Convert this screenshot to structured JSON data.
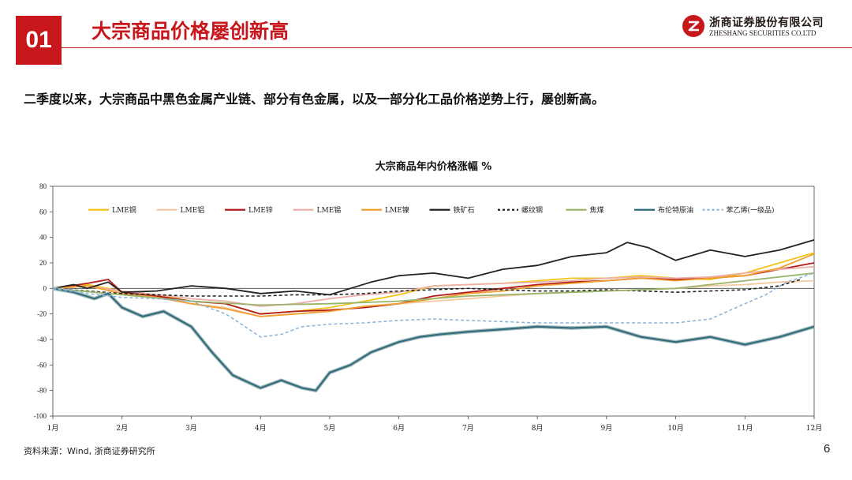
{
  "header": {
    "number": "01",
    "title": "大宗商品价格屡创新高",
    "brand_color": "#c8161d"
  },
  "logo": {
    "cn": "浙商证券股份有限公司",
    "en": "ZHESHANG SECURITIES CO.LTD"
  },
  "subtitle": "二季度以来，大宗商品中黑色金属产业链、部分有色金属，以及一部分化工品价格逆势上行，屡创新高。",
  "footer": {
    "source": "资料来源：Wind, 浙商证券研究所",
    "page": "6"
  },
  "chart_data": {
    "type": "line",
    "title": "大宗商品年内价格涨幅 %",
    "x_categories": [
      "1月",
      "2月",
      "3月",
      "4月",
      "5月",
      "6月",
      "7月",
      "8月",
      "9月",
      "10月",
      "11月",
      "12月"
    ],
    "ylim": [
      -100,
      80
    ],
    "yticks": [
      80,
      60,
      40,
      20,
      0,
      -20,
      -40,
      -60,
      -80,
      -100
    ],
    "grid": false,
    "legend_position": "top",
    "series": [
      {
        "name": "LME铜",
        "color": "#f2c418",
        "dash": "solid",
        "values": [
          [
            1,
            0
          ],
          [
            1.5,
            3
          ],
          [
            2,
            -2
          ],
          [
            2.5,
            -5
          ],
          [
            3,
            -10
          ],
          [
            3.5,
            -12
          ],
          [
            4,
            -20
          ],
          [
            4.5,
            -18
          ],
          [
            5,
            -15
          ],
          [
            5.5,
            -10
          ],
          [
            6,
            -5
          ],
          [
            6.5,
            2
          ],
          [
            7,
            3
          ],
          [
            7.5,
            4
          ],
          [
            8,
            6
          ],
          [
            8.5,
            8
          ],
          [
            9,
            8
          ],
          [
            9.5,
            10
          ],
          [
            10,
            8
          ],
          [
            10.5,
            7
          ],
          [
            11,
            12
          ],
          [
            11.5,
            20
          ],
          [
            12,
            28
          ]
        ]
      },
      {
        "name": "LME铝",
        "color": "#f5c9a0",
        "dash": "solid",
        "values": [
          [
            1,
            0
          ],
          [
            1.5,
            2
          ],
          [
            2,
            -3
          ],
          [
            2.5,
            -6
          ],
          [
            3,
            -12
          ],
          [
            3.5,
            -15
          ],
          [
            4,
            -22
          ],
          [
            4.5,
            -20
          ],
          [
            5,
            -18
          ],
          [
            5.5,
            -14
          ],
          [
            6,
            -12
          ],
          [
            6.5,
            -10
          ],
          [
            7,
            -8
          ],
          [
            7.5,
            -6
          ],
          [
            8,
            -4
          ],
          [
            8.5,
            -3
          ],
          [
            9,
            -2
          ],
          [
            9.5,
            -1
          ],
          [
            10,
            0
          ],
          [
            10.5,
            2
          ],
          [
            11,
            3
          ],
          [
            11.5,
            5
          ],
          [
            12,
            6
          ]
        ]
      },
      {
        "name": "LME锌",
        "color": "#b31b1b",
        "dash": "solid",
        "values": [
          [
            1,
            0
          ],
          [
            1.5,
            4
          ],
          [
            1.8,
            7
          ],
          [
            2,
            -3
          ],
          [
            2.5,
            -6
          ],
          [
            3,
            -10
          ],
          [
            3.5,
            -12
          ],
          [
            4,
            -20
          ],
          [
            4.5,
            -18
          ],
          [
            5,
            -17
          ],
          [
            5.5,
            -15
          ],
          [
            6,
            -12
          ],
          [
            6.5,
            -6
          ],
          [
            7,
            -3
          ],
          [
            7.5,
            0
          ],
          [
            8,
            3
          ],
          [
            8.5,
            5
          ],
          [
            9,
            6
          ],
          [
            9.5,
            8
          ],
          [
            10,
            7
          ],
          [
            10.5,
            8
          ],
          [
            11,
            10
          ],
          [
            11.5,
            15
          ],
          [
            12,
            20
          ]
        ]
      },
      {
        "name": "LME锡",
        "color": "#ecb0a8",
        "dash": "solid",
        "values": [
          [
            1,
            0
          ],
          [
            1.5,
            2
          ],
          [
            2,
            -2
          ],
          [
            2.5,
            -5
          ],
          [
            3,
            -8
          ],
          [
            3.5,
            -10
          ],
          [
            4,
            -14
          ],
          [
            4.5,
            -12
          ],
          [
            5,
            -8
          ],
          [
            5.5,
            -5
          ],
          [
            6,
            -3
          ],
          [
            6.5,
            2
          ],
          [
            7,
            3
          ],
          [
            7.5,
            4
          ],
          [
            8,
            5
          ],
          [
            8.5,
            6
          ],
          [
            9,
            8
          ],
          [
            9.5,
            9
          ],
          [
            10,
            8
          ],
          [
            10.5,
            9
          ],
          [
            11,
            12
          ],
          [
            11.5,
            15
          ],
          [
            12,
            17
          ]
        ]
      },
      {
        "name": "LME镍",
        "color": "#f0a030",
        "dash": "solid",
        "values": [
          [
            1,
            0
          ],
          [
            1.5,
            2
          ],
          [
            2,
            -4
          ],
          [
            2.5,
            -7
          ],
          [
            3,
            -12
          ],
          [
            3.5,
            -16
          ],
          [
            4,
            -22
          ],
          [
            4.5,
            -20
          ],
          [
            5,
            -18
          ],
          [
            5.5,
            -14
          ],
          [
            6,
            -12
          ],
          [
            6.5,
            -8
          ],
          [
            7,
            -4
          ],
          [
            7.5,
            -2
          ],
          [
            8,
            2
          ],
          [
            8.5,
            4
          ],
          [
            9,
            6
          ],
          [
            9.5,
            8
          ],
          [
            10,
            6
          ],
          [
            10.5,
            8
          ],
          [
            11,
            10
          ],
          [
            11.5,
            16
          ],
          [
            12,
            27
          ]
        ]
      },
      {
        "name": "铁矿石",
        "color": "#222222",
        "dash": "solid",
        "values": [
          [
            1,
            0
          ],
          [
            1.3,
            3
          ],
          [
            1.5,
            0
          ],
          [
            1.8,
            5
          ],
          [
            2,
            -3
          ],
          [
            2.5,
            -2
          ],
          [
            3,
            2
          ],
          [
            3.5,
            0
          ],
          [
            4,
            -4
          ],
          [
            4.5,
            -2
          ],
          [
            5,
            -5
          ],
          [
            5.3,
            0
          ],
          [
            5.6,
            5
          ],
          [
            6,
            10
          ],
          [
            6.5,
            12
          ],
          [
            7,
            8
          ],
          [
            7.5,
            15
          ],
          [
            8,
            18
          ],
          [
            8.5,
            25
          ],
          [
            9,
            28
          ],
          [
            9.3,
            36
          ],
          [
            9.6,
            32
          ],
          [
            10,
            22
          ],
          [
            10.5,
            30
          ],
          [
            11,
            25
          ],
          [
            11.5,
            30
          ],
          [
            12,
            38
          ]
        ]
      },
      {
        "name": "螺纹钢",
        "color": "#222222",
        "dash": "dashed",
        "values": [
          [
            1,
            0
          ],
          [
            1.5,
            -2
          ],
          [
            2,
            -4
          ],
          [
            2.5,
            -5
          ],
          [
            3,
            -6
          ],
          [
            3.5,
            -6
          ],
          [
            4,
            -6
          ],
          [
            4.5,
            -5
          ],
          [
            5,
            -5
          ],
          [
            5.5,
            -4
          ],
          [
            6,
            -2
          ],
          [
            6.5,
            -1
          ],
          [
            7,
            0
          ],
          [
            7.5,
            -1
          ],
          [
            8,
            -2
          ],
          [
            8.5,
            -2
          ],
          [
            9,
            -1
          ],
          [
            9.5,
            -2
          ],
          [
            10,
            -3
          ],
          [
            10.5,
            -2
          ],
          [
            11,
            -1
          ],
          [
            11.5,
            2
          ],
          [
            11.8,
            7
          ]
        ]
      },
      {
        "name": "焦煤",
        "color": "#9ab56b",
        "dash": "solid",
        "values": [
          [
            1,
            0
          ],
          [
            2,
            -5
          ],
          [
            3,
            -10
          ],
          [
            4,
            -13
          ],
          [
            5,
            -12
          ],
          [
            6,
            -10
          ],
          [
            7,
            -6
          ],
          [
            8,
            -4
          ],
          [
            9,
            -2
          ],
          [
            10,
            0
          ],
          [
            11,
            6
          ],
          [
            12,
            12
          ]
        ]
      },
      {
        "name": "布伦特原油",
        "color": "#2e6b78",
        "dash": "solid",
        "values": [
          [
            1,
            0
          ],
          [
            1.3,
            -3
          ],
          [
            1.6,
            -8
          ],
          [
            1.8,
            -4
          ],
          [
            2,
            -15
          ],
          [
            2.3,
            -22
          ],
          [
            2.6,
            -18
          ],
          [
            3,
            -30
          ],
          [
            3.3,
            -50
          ],
          [
            3.6,
            -68
          ],
          [
            4,
            -78
          ],
          [
            4.3,
            -72
          ],
          [
            4.6,
            -78
          ],
          [
            4.8,
            -80
          ],
          [
            5,
            -66
          ],
          [
            5.3,
            -60
          ],
          [
            5.6,
            -50
          ],
          [
            6,
            -42
          ],
          [
            6.3,
            -38
          ],
          [
            6.6,
            -36
          ],
          [
            7,
            -34
          ],
          [
            7.5,
            -32
          ],
          [
            8,
            -30
          ],
          [
            8.5,
            -31
          ],
          [
            9,
            -30
          ],
          [
            9.5,
            -38
          ],
          [
            10,
            -42
          ],
          [
            10.5,
            -38
          ],
          [
            11,
            -44
          ],
          [
            11.5,
            -38
          ],
          [
            12,
            -30
          ]
        ]
      },
      {
        "name": "苯乙烯(一级品)",
        "color": "#8fb4d9",
        "dash": "dashed",
        "values": [
          [
            1,
            0
          ],
          [
            1.5,
            -4
          ],
          [
            2,
            -7
          ],
          [
            2.5,
            -8
          ],
          [
            3,
            -10
          ],
          [
            3.5,
            -20
          ],
          [
            4,
            -38
          ],
          [
            4.3,
            -36
          ],
          [
            4.6,
            -30
          ],
          [
            5,
            -28
          ],
          [
            5.5,
            -27
          ],
          [
            6,
            -25
          ],
          [
            6.5,
            -24
          ],
          [
            7,
            -25
          ],
          [
            7.5,
            -26
          ],
          [
            8,
            -27
          ],
          [
            8.5,
            -27
          ],
          [
            9,
            -27
          ],
          [
            9.5,
            -27
          ],
          [
            10,
            -27
          ],
          [
            10.5,
            -24
          ],
          [
            11,
            -12
          ],
          [
            11.3,
            -5
          ],
          [
            11.6,
            5
          ],
          [
            12,
            12
          ]
        ]
      }
    ]
  }
}
